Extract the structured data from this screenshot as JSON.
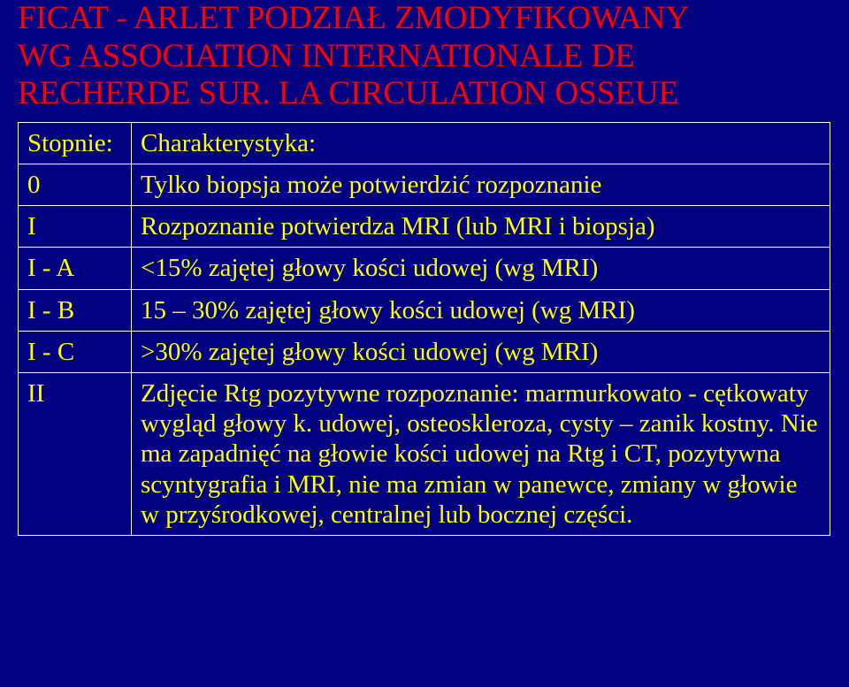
{
  "title_line1": "FICAT - ARLET PODZIAŁ ZMODYFIKOWANY",
  "title_line2": "WG ASSOCIATION INTERNATIONALE DE",
  "title_line3": "RECHERDE SUR. LA CIRCULATION OSSEUE",
  "table": {
    "header": {
      "c1": "Stopnie:",
      "c2": "Charakterystyka:"
    },
    "rows": [
      {
        "c1": "0",
        "c2": "Tylko biopsja może potwierdzić rozpoznanie"
      },
      {
        "c1": "I",
        "c2": "Rozpoznanie potwierdza MRI (lub MRI i biopsja)"
      },
      {
        "c1": "I - A",
        "c2": "<15% zajętej głowy kości udowej (wg MRI)"
      },
      {
        "c1": "I - B",
        "c2": "15 – 30% zajętej głowy kości udowej (wg MRI)"
      },
      {
        "c1": "I - C",
        "c2": ">30% zajętej głowy kości udowej (wg MRI)"
      },
      {
        "c1": "II",
        "c2": "Zdjęcie Rtg pozytywne rozpoznanie: marmurkowato - cętkowaty wygląd głowy k. udowej, osteoskleroza, cysty – zanik kostny. Nie ma zapadnięć na głowie kości udowej na Rtg i CT, pozytywna scyntygrafia i MRI, nie ma zmian w panewce, zmiany w głowie w przyśrodkowej, centralnej lub bocznej części."
      }
    ]
  },
  "colors": {
    "background": "#000080",
    "title": "#ff0000",
    "cell_text": "#ffff00",
    "border": "#ffffff"
  },
  "fontsize": {
    "title": 37,
    "cell": 29
  }
}
